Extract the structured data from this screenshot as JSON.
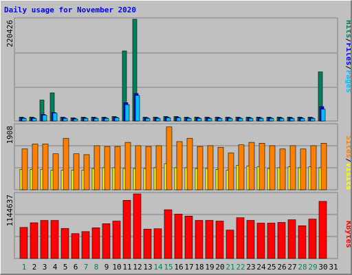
{
  "chart_data": {
    "type": "bar",
    "title": "Daily usage for November 2020",
    "categories": [
      "1",
      "2",
      "3",
      "4",
      "5",
      "6",
      "7",
      "8",
      "9",
      "10",
      "11",
      "12",
      "13",
      "14",
      "15",
      "16",
      "17",
      "18",
      "19",
      "20",
      "21",
      "22",
      "23",
      "24",
      "25",
      "26",
      "27",
      "28",
      "29",
      "30",
      "31"
    ],
    "weekend_days": [
      "1",
      "7",
      "8",
      "14",
      "15",
      "21",
      "22",
      "28",
      "29"
    ],
    "colors": {
      "hits": "#00805c",
      "files": "#0000ff",
      "pages": "#00c0ff",
      "visits": "#ffff00",
      "sites": "#ff8000",
      "kbytes": "#ff0000",
      "weekday_label": "#000000",
      "weekend_label": "#00805c",
      "title": "#0000ff"
    },
    "panels": [
      {
        "name": "hits-files-pages",
        "ymax_label": "220426",
        "ymax": 220426,
        "legend": [
          {
            "text": "Hits",
            "color": "#00805c"
          },
          {
            "text": "/",
            "color": "#000000"
          },
          {
            "text": "Files",
            "color": "#0000ff"
          },
          {
            "text": "/",
            "color": "#000000"
          },
          {
            "text": "Pages",
            "color": "#00c0ff"
          }
        ],
        "series": [
          {
            "name": "Hits",
            "values": [
              8400,
              8400,
              44800,
              60200,
              8400,
              7000,
              8400,
              8400,
              8400,
              9800,
              149800,
              221200,
              8400,
              8400,
              9800,
              9800,
              8400,
              8400,
              8400,
              8400,
              8400,
              8400,
              8400,
              8400,
              8400,
              8400,
              8400,
              8400,
              8400,
              105000,
              0
            ]
          },
          {
            "name": "Files",
            "values": [
              7000,
              7000,
              14000,
              18200,
              7000,
              5600,
              7000,
              7000,
              7000,
              8400,
              39200,
              58800,
              7000,
              7000,
              8400,
              8400,
              7000,
              7000,
              7000,
              7000,
              7000,
              7000,
              7000,
              7000,
              7000,
              7000,
              7000,
              7000,
              7000,
              30800,
              0
            ]
          },
          {
            "name": "Pages",
            "values": [
              5600,
              5600,
              12600,
              16800,
              5600,
              4200,
              5600,
              5600,
              5600,
              7000,
              35000,
              54600,
              5600,
              5600,
              7000,
              7000,
              5600,
              5600,
              5600,
              5600,
              5600,
              5600,
              5600,
              5600,
              5600,
              5600,
              5600,
              5600,
              5600,
              25200,
              0
            ]
          }
        ]
      },
      {
        "name": "visits-sites",
        "ymax_label": "1908",
        "ymax": 1908,
        "legend": [
          {
            "text": "Sites",
            "color": "#ff8000"
          },
          {
            "text": "/",
            "color": "#000000"
          },
          {
            "text": "Visits",
            "color": "#ffff00"
          }
        ],
        "series": [
          {
            "name": "Visits",
            "values": [
              590,
              590,
              590,
              566,
              566,
              566,
              566,
              614,
              637,
              637,
              614,
              614,
              614,
              637,
              755,
              637,
              637,
              614,
              614,
              590,
              566,
              708,
              684,
              661,
              614,
              637,
              661,
              637,
              661,
              637,
              0
            ]
          },
          {
            "name": "Sites",
            "values": [
              1180,
              1322,
              1322,
              1039,
              1487,
              1039,
              1015,
              1274,
              1251,
              1251,
              1369,
              1274,
              1251,
              1274,
              1817,
              1392,
              1487,
              1251,
              1274,
              1227,
              1062,
              1298,
              1369,
              1345,
              1274,
              1180,
              1274,
              1180,
              1274,
              1345,
              0
            ]
          }
        ]
      },
      {
        "name": "kbytes",
        "ymax_label": "1144637",
        "ymax": 1144637,
        "legend": [
          {
            "text": "KBytes",
            "color": "#ff0000"
          }
        ],
        "series": [
          {
            "name": "KBytes",
            "values": [
              539000,
              620000,
              660000,
              660000,
              522000,
              432000,
              467000,
              533000,
              603000,
              649000,
              1009000,
              1177000,
              510000,
              516000,
              846000,
              770000,
              736000,
              661000,
              661000,
              649000,
              493000,
              707000,
              661000,
              614000,
              614000,
              626000,
              672000,
              568000,
              684000,
              991000,
              0
            ]
          }
        ]
      }
    ]
  }
}
